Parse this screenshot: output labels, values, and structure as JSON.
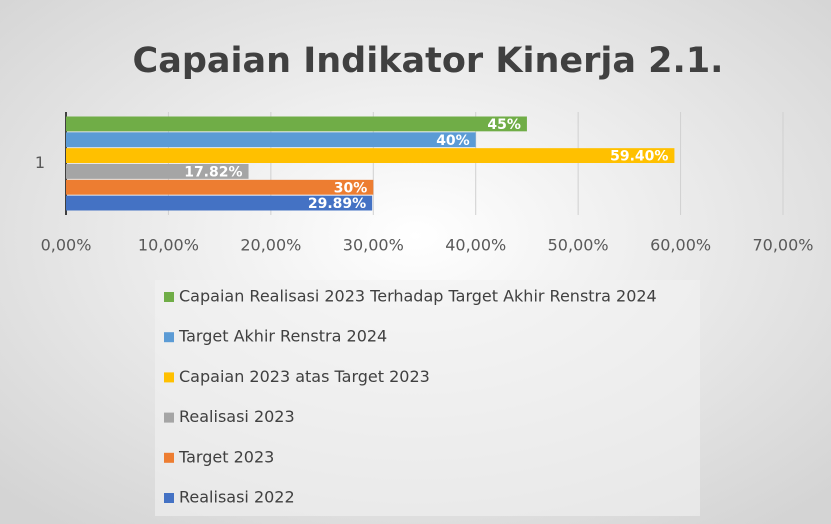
{
  "chart_data": {
    "type": "barh",
    "title": "Capaian Indikator Kinerja 2.1.",
    "categories": [
      "1"
    ],
    "series": [
      {
        "name": "Capaian Realisasi 2023 Terhadap Target Akhir Renstra 2024",
        "color": "#70ad47",
        "values": [
          45
        ],
        "value_labels": [
          "45%"
        ]
      },
      {
        "name": "Target Akhir Renstra 2024",
        "color": "#5b9bd5",
        "values": [
          40
        ],
        "value_labels": [
          "40%"
        ]
      },
      {
        "name": "Capaian 2023 atas Target 2023",
        "color": "#ffc000",
        "values": [
          59.4
        ],
        "value_labels": [
          "59.40%"
        ]
      },
      {
        "name": "Realisasi 2023",
        "color": "#a5a5a5",
        "values": [
          17.82
        ],
        "value_labels": [
          "17.82%"
        ]
      },
      {
        "name": "Target 2023",
        "color": "#ed7d31",
        "values": [
          30
        ],
        "value_labels": [
          "30%"
        ]
      },
      {
        "name": "Realisasi 2022",
        "color": "#4472c4",
        "values": [
          29.89
        ],
        "value_labels": [
          "29.89%"
        ]
      }
    ],
    "xlim": [
      0,
      70
    ],
    "xticks": [
      {
        "value": 0,
        "label": "0,00%"
      },
      {
        "value": 10,
        "label": "10,00%"
      },
      {
        "value": 20,
        "label": "20,00%"
      },
      {
        "value": 30,
        "label": "30,00%"
      },
      {
        "value": 40,
        "label": "40,00%"
      },
      {
        "value": 50,
        "label": "50,00%"
      },
      {
        "value": 60,
        "label": "60,00%"
      },
      {
        "value": 70,
        "label": "70,00%"
      }
    ],
    "grid": true,
    "legend": "bottom"
  }
}
